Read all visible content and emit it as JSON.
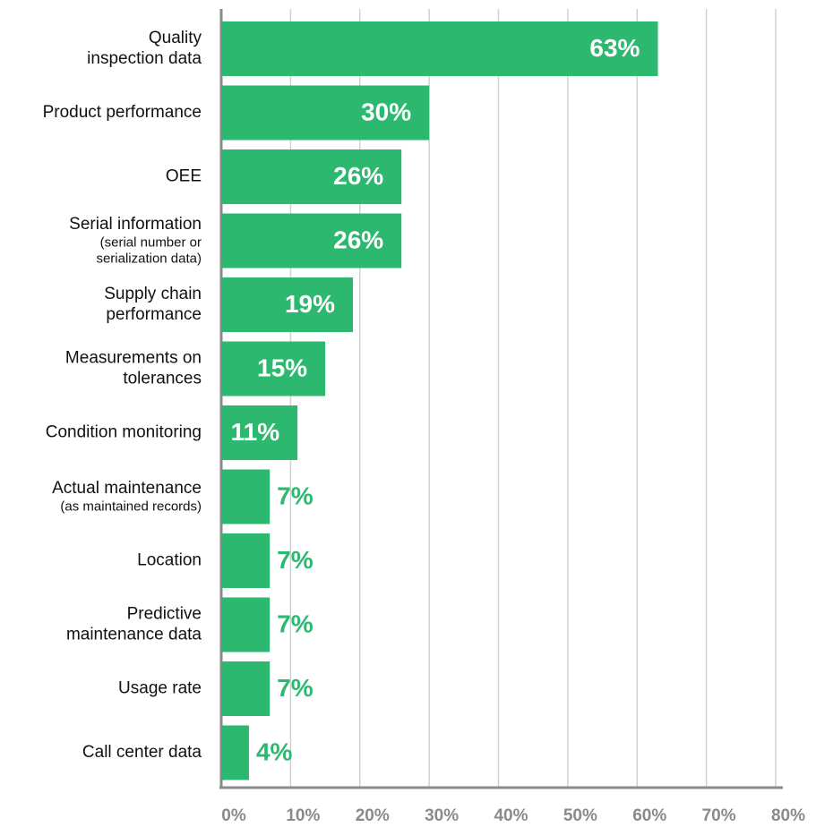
{
  "chart_data": {
    "type": "barh",
    "categories": [
      [
        "Quality",
        "inspection data"
      ],
      [
        "Product performance"
      ],
      [
        "OEE"
      ],
      [
        "Serial information"
      ],
      [
        "Supply chain",
        "performance"
      ],
      [
        "Measurements on",
        "tolerances"
      ],
      [
        "Condition monitoring"
      ],
      [
        "Actual maintenance"
      ],
      [
        "Location"
      ],
      [
        "Predictive",
        "maintenance data"
      ],
      [
        "Usage rate"
      ],
      [
        "Call center data"
      ]
    ],
    "category_notes": [
      null,
      null,
      null,
      [
        "(serial number or",
        "serialization data)"
      ],
      null,
      null,
      null,
      [
        "(as maintained records)"
      ],
      null,
      null,
      null,
      null
    ],
    "values": [
      63,
      30,
      26,
      26,
      19,
      15,
      11,
      7,
      7,
      7,
      7,
      4
    ],
    "value_labels": [
      "63%",
      "30%",
      "26%",
      "26%",
      "19%",
      "15%",
      "11%",
      "7%",
      "7%",
      "7%",
      "7%",
      "4%"
    ],
    "color": "#2db870",
    "label_color_inside": "#ffffff",
    "xlim": [
      0,
      80
    ],
    "xticks": [
      {
        "value": 0,
        "label": "0%"
      },
      {
        "value": 10,
        "label": "10%"
      },
      {
        "value": 20,
        "label": "20%"
      },
      {
        "value": 30,
        "label": "30%"
      },
      {
        "value": 40,
        "label": "40%"
      },
      {
        "value": 50,
        "label": "50%"
      },
      {
        "value": 60,
        "label": "60%"
      },
      {
        "value": 70,
        "label": "70%"
      },
      {
        "value": 80,
        "label": "80%"
      }
    ],
    "grid": true
  }
}
